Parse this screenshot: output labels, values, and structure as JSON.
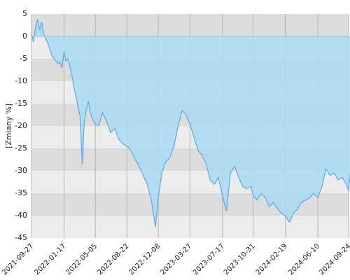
{
  "chart_data": {
    "type": "area",
    "title": "",
    "xlabel": "",
    "ylabel": "[Zmiany %]",
    "ylim": [
      -45,
      5
    ],
    "yticks": [
      5,
      0,
      -5,
      -10,
      -15,
      -20,
      -25,
      -30,
      -35,
      -40,
      -45
    ],
    "xtick_labels": [
      "2021-09-27",
      "2022-01-17",
      "2022-05-05",
      "2022-08-22",
      "2022-12-08",
      "2023-03-27",
      "2023-07-17",
      "2023-10-31",
      "2024-02-19",
      "2024-06-10",
      "2024-09-24"
    ],
    "grid": true,
    "colors": {
      "line": "#5aa7ef",
      "fill": "#a9dcf3",
      "band_dark": "#dcdcdc",
      "band_light": "#ececec",
      "grid": "#b4b4b4"
    },
    "series": [
      {
        "x": [
          "2021-09-27",
          "2021-10-04",
          "2021-10-11",
          "2021-10-18",
          "2021-10-25",
          "2021-11-01",
          "2021-11-08",
          "2021-11-15",
          "2021-11-22",
          "2021-11-29",
          "2021-12-06",
          "2021-12-13",
          "2021-12-20",
          "2021-12-27",
          "2022-01-03",
          "2022-01-10",
          "2022-01-17",
          "2022-01-24",
          "2022-01-31",
          "2022-02-07",
          "2022-02-14",
          "2022-02-21",
          "2022-02-28",
          "2022-03-07",
          "2022-03-14",
          "2022-03-21",
          "2022-03-28",
          "2022-04-04",
          "2022-04-11",
          "2022-04-18",
          "2022-04-25",
          "2022-05-05",
          "2022-05-16",
          "2022-05-30",
          "2022-06-13",
          "2022-06-27",
          "2022-07-11",
          "2022-07-25",
          "2022-08-08",
          "2022-08-22",
          "2022-09-05",
          "2022-09-19",
          "2022-10-03",
          "2022-10-17",
          "2022-10-31",
          "2022-11-14",
          "2022-11-28",
          "2022-12-08",
          "2022-12-20",
          "2023-01-03",
          "2023-01-17",
          "2023-01-31",
          "2023-02-14",
          "2023-02-28",
          "2023-03-14",
          "2023-03-27",
          "2023-04-10",
          "2023-04-24",
          "2023-05-08",
          "2023-05-22",
          "2023-06-05",
          "2023-06-19",
          "2023-07-03",
          "2023-07-17",
          "2023-07-31",
          "2023-08-14",
          "2023-08-28",
          "2023-09-11",
          "2023-09-25",
          "2023-10-09",
          "2023-10-23",
          "2023-10-31",
          "2023-11-14",
          "2023-11-28",
          "2023-12-12",
          "2023-12-26",
          "2024-01-09",
          "2024-01-23",
          "2024-02-06",
          "2024-02-19",
          "2024-03-04",
          "2024-03-18",
          "2024-04-01",
          "2024-04-15",
          "2024-04-29",
          "2024-05-13",
          "2024-05-27",
          "2024-06-10",
          "2024-06-24",
          "2024-07-08",
          "2024-07-22",
          "2024-08-05",
          "2024-08-19",
          "2024-09-02",
          "2024-09-16",
          "2024-09-24",
          "2024-09-30",
          "2024-10-02"
        ],
        "y": [
          0.5,
          -1.2,
          2.0,
          3.8,
          1.5,
          3.2,
          0.5,
          -0.5,
          -1.5,
          -2.8,
          -4.2,
          -5.0,
          -5.5,
          -6.0,
          -5.8,
          -7.0,
          -3.5,
          -5.5,
          -5.0,
          -7.0,
          -9.0,
          -11.5,
          -13.5,
          -16.0,
          -18.0,
          -28.5,
          -19.0,
          -16.5,
          -14.5,
          -17.0,
          -18.5,
          -19.5,
          -20.0,
          -17.0,
          -19.0,
          -21.5,
          -20.5,
          -23.0,
          -24.0,
          -24.5,
          -25.5,
          -27.5,
          -29.0,
          -31.0,
          -33.0,
          -36.5,
          -42.5,
          -36.0,
          -30.5,
          -28.0,
          -27.0,
          -24.5,
          -20.0,
          -16.5,
          -17.5,
          -19.5,
          -22.5,
          -25.5,
          -26.5,
          -28.5,
          -32.0,
          -33.0,
          -31.5,
          -35.5,
          -39.0,
          -30.5,
          -29.0,
          -31.5,
          -33.5,
          -34.0,
          -33.5,
          -35.5,
          -36.5,
          -35.0,
          -36.0,
          -38.0,
          -37.0,
          -38.5,
          -39.5,
          -40.0,
          -41.5,
          -39.5,
          -38.5,
          -37.0,
          -36.5,
          -36.0,
          -35.0,
          -36.0,
          -33.5,
          -29.5,
          -31.0,
          -30.5,
          -32.0,
          -31.5,
          -33.0,
          -34.5,
          -30.5,
          -26.0
        ]
      }
    ]
  }
}
